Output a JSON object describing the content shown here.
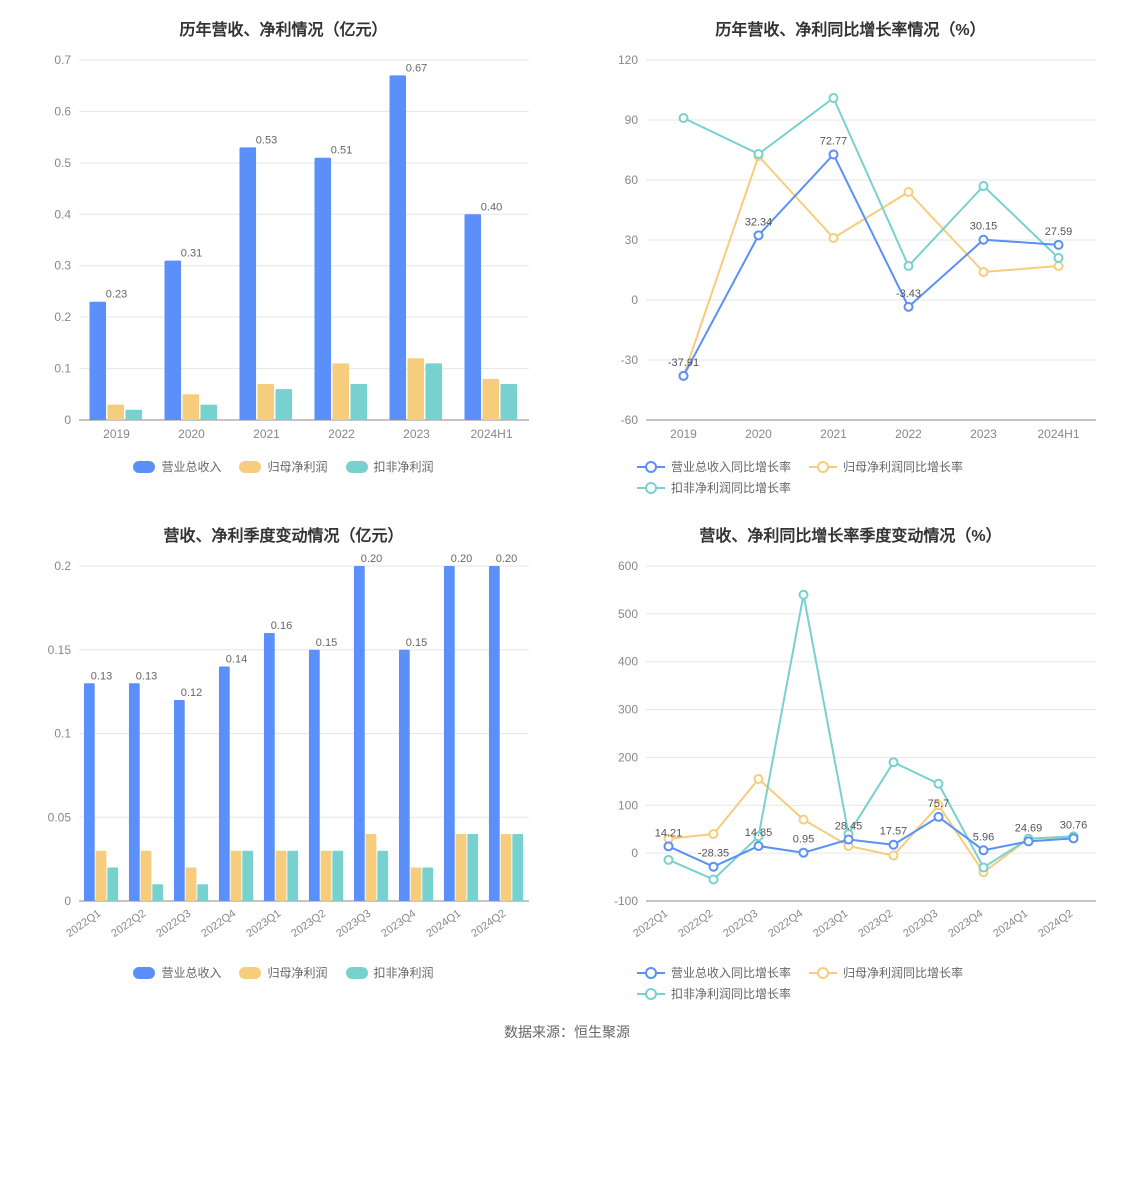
{
  "colors": {
    "series_blue": "#5b8ff9",
    "series_yellow": "#f6cd7c",
    "series_teal": "#77d1cf",
    "line_blue": "#5b8ff9",
    "line_yellow": "#f6cd7c",
    "line_teal": "#77d1cf",
    "grid": "#e6e6e6",
    "axis": "#888888",
    "text": "#333333",
    "tick_text": "#888888",
    "background": "#ffffff"
  },
  "typography": {
    "title_fontsize": 16,
    "tick_fontsize": 12,
    "label_fontsize": 11,
    "legend_fontsize": 12,
    "footer_fontsize": 14
  },
  "chart1": {
    "type": "bar",
    "title": "历年营收、净利情况（亿元）",
    "categories": [
      "2019",
      "2020",
      "2021",
      "2022",
      "2023",
      "2024H1"
    ],
    "series": [
      {
        "name": "营业总收入",
        "color": "#5b8ff9",
        "values": [
          0.23,
          0.31,
          0.53,
          0.51,
          0.67,
          0.4
        ],
        "show_label": true
      },
      {
        "name": "归母净利润",
        "color": "#f6cd7c",
        "values": [
          0.03,
          0.05,
          0.07,
          0.11,
          0.12,
          0.08
        ],
        "show_label": false
      },
      {
        "name": "扣非净利润",
        "color": "#77d1cf",
        "values": [
          0.02,
          0.03,
          0.06,
          0.07,
          0.11,
          0.07
        ],
        "show_label": false
      }
    ],
    "ylim": [
      0,
      0.7
    ],
    "ytick_step": 0.1,
    "bar_group_width": 0.72,
    "legend_labels": [
      "营业总收入",
      "归母净利润",
      "扣非净利润"
    ]
  },
  "chart2": {
    "type": "line",
    "title": "历年营收、净利同比增长率情况（%）",
    "categories": [
      "2019",
      "2020",
      "2021",
      "2022",
      "2023",
      "2024H1"
    ],
    "series": [
      {
        "name": "营业总收入同比增长率",
        "color": "#5b8ff9",
        "values": [
          -37.91,
          32.34,
          72.77,
          -3.43,
          30.15,
          27.59
        ],
        "show_label": true
      },
      {
        "name": "归母净利润同比增长率",
        "color": "#f6cd7c",
        "values": [
          -38,
          72,
          31,
          54,
          14,
          17
        ],
        "show_label": false
      },
      {
        "name": "扣非净利润同比增长率",
        "color": "#77d1cf",
        "values": [
          91,
          73,
          101,
          17,
          57,
          21
        ],
        "show_label": false
      }
    ],
    "ylim": [
      -60,
      120
    ],
    "ytick_step": 30,
    "marker_radius": 4,
    "line_width": 2,
    "legend_labels": [
      "营业总收入同比增长率",
      "归母净利润同比增长率",
      "扣非净利润同比增长率"
    ]
  },
  "chart3": {
    "type": "bar",
    "title": "营收、净利季度变动情况（亿元）",
    "categories": [
      "2022Q1",
      "2022Q2",
      "2022Q3",
      "2022Q4",
      "2023Q1",
      "2023Q2",
      "2023Q3",
      "2023Q4",
      "2024Q1",
      "2024Q2"
    ],
    "rotate_xticks": true,
    "series": [
      {
        "name": "营业总收入",
        "color": "#5b8ff9",
        "values": [
          0.13,
          0.13,
          0.12,
          0.14,
          0.16,
          0.15,
          0.2,
          0.15,
          0.2,
          0.2
        ],
        "show_label": true
      },
      {
        "name": "归母净利润",
        "color": "#f6cd7c",
        "values": [
          0.03,
          0.03,
          0.02,
          0.03,
          0.03,
          0.03,
          0.04,
          0.02,
          0.04,
          0.04
        ],
        "show_label": false
      },
      {
        "name": "扣非净利润",
        "color": "#77d1cf",
        "values": [
          0.02,
          0.01,
          0.01,
          0.03,
          0.03,
          0.03,
          0.03,
          0.02,
          0.04,
          0.04
        ],
        "show_label": false
      }
    ],
    "ylim": [
      0,
      0.2
    ],
    "ytick_step": 0.05,
    "bar_group_width": 0.78,
    "legend_labels": [
      "营业总收入",
      "归母净利润",
      "扣非净利润"
    ]
  },
  "chart4": {
    "type": "line",
    "title": "营收、净利同比增长率季度变动情况（%）",
    "categories": [
      "2022Q1",
      "2022Q2",
      "2022Q3",
      "2022Q4",
      "2023Q1",
      "2023Q2",
      "2023Q3",
      "2023Q4",
      "2024Q1",
      "2024Q2"
    ],
    "rotate_xticks": true,
    "series": [
      {
        "name": "营业总收入同比增长率",
        "color": "#5b8ff9",
        "values": [
          14.21,
          -28.35,
          14.85,
          0.95,
          28.45,
          17.57,
          75.7,
          5.96,
          24.69,
          30.76
        ],
        "show_label": true
      },
      {
        "name": "归母净利润同比增长率",
        "color": "#f6cd7c",
        "values": [
          30,
          40,
          155,
          70,
          15,
          -5,
          100,
          -40,
          30,
          35
        ],
        "show_label": false
      },
      {
        "name": "扣非净利润同比增长率",
        "color": "#77d1cf",
        "values": [
          -14,
          -55,
          35,
          540,
          40,
          190,
          145,
          -30,
          30,
          35
        ],
        "show_label": false
      }
    ],
    "ylim": [
      -100,
      600
    ],
    "ytick_step": 100,
    "marker_radius": 4,
    "line_width": 2,
    "legend_labels": [
      "营业总收入同比增长率",
      "归母净利润同比增长率",
      "扣非净利润同比增长率"
    ]
  },
  "footer": "数据来源：恒生聚源"
}
